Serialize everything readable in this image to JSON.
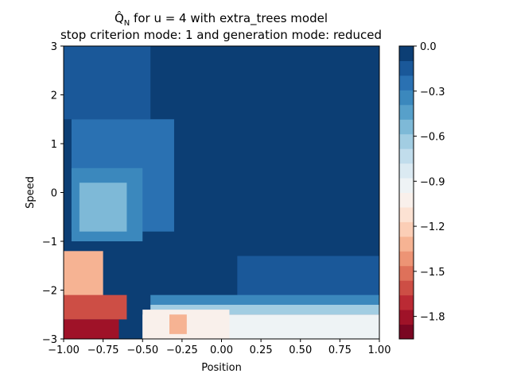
{
  "chart_data": {
    "type": "heatmap",
    "title_line1_prefix": "Q̂",
    "title_line1_subscript": "N",
    "title_line1_suffix": " for u = 4 with extra_trees model",
    "title_line2": "stop criterion mode: 1 and generation mode: reduced",
    "xlabel": "Position",
    "ylabel": "Speed",
    "xlim": [
      -1.0,
      1.0
    ],
    "ylim": [
      -3,
      3
    ],
    "xticks": [
      "−1.00",
      "−0.75",
      "−0.50",
      "−0.25",
      "0.00",
      "0.25",
      "0.50",
      "0.75",
      "1.00"
    ],
    "yticks": [
      "−3",
      "−2",
      "−1",
      "0",
      "1",
      "2",
      "3"
    ],
    "colorbar": {
      "colormap": "RdBu",
      "range": [
        -1.95,
        0.0
      ],
      "levels": 20,
      "tick_values": [
        0.0,
        -0.3,
        -0.6,
        -0.9,
        -1.2,
        -1.5,
        -1.8
      ],
      "tick_labels": [
        "0.0",
        "−0.3",
        "−0.6",
        "−0.9",
        "−1.2",
        "−1.5",
        "−1.8"
      ]
    },
    "regions": [
      {
        "x": [
          -1.0,
          1.0
        ],
        "y": [
          -3.0,
          3.0
        ],
        "value": -0.02
      },
      {
        "x": [
          -1.0,
          -0.45
        ],
        "y": [
          1.5,
          3.0
        ],
        "value": -0.12
      },
      {
        "x": [
          -0.95,
          -0.3
        ],
        "y": [
          -0.8,
          1.5
        ],
        "value": -0.22
      },
      {
        "x": [
          -0.95,
          -0.5
        ],
        "y": [
          -1.0,
          0.5
        ],
        "value": -0.35
      },
      {
        "x": [
          -0.9,
          -0.6
        ],
        "y": [
          -0.8,
          0.2
        ],
        "value": -0.5
      },
      {
        "x": [
          -0.6,
          0.1
        ],
        "y": [
          -1.9,
          -1.0
        ],
        "value": -0.08
      },
      {
        "x": [
          0.1,
          1.0
        ],
        "y": [
          -2.3,
          -1.3
        ],
        "value": -0.12
      },
      {
        "x": [
          -0.45,
          1.0
        ],
        "y": [
          -2.3,
          -2.1
        ],
        "value": -0.35
      },
      {
        "x": [
          -0.45,
          1.0
        ],
        "y": [
          -2.5,
          -2.3
        ],
        "value": -0.6
      },
      {
        "x": [
          -0.5,
          1.0
        ],
        "y": [
          -3.0,
          -2.5
        ],
        "value": -0.9
      },
      {
        "x": [
          -0.5,
          0.05
        ],
        "y": [
          -3.0,
          -2.4
        ],
        "value": -1.0
      },
      {
        "x": [
          -0.33,
          -0.22
        ],
        "y": [
          -2.9,
          -2.5
        ],
        "value": -1.3
      },
      {
        "x": [
          -1.0,
          -0.75
        ],
        "y": [
          -2.2,
          -1.2
        ],
        "value": -1.35
      },
      {
        "x": [
          -1.0,
          -0.6
        ],
        "y": [
          -2.6,
          -2.1
        ],
        "value": -1.6
      },
      {
        "x": [
          -1.0,
          -0.65
        ],
        "y": [
          -3.0,
          -2.6
        ],
        "value": -1.85
      }
    ]
  }
}
